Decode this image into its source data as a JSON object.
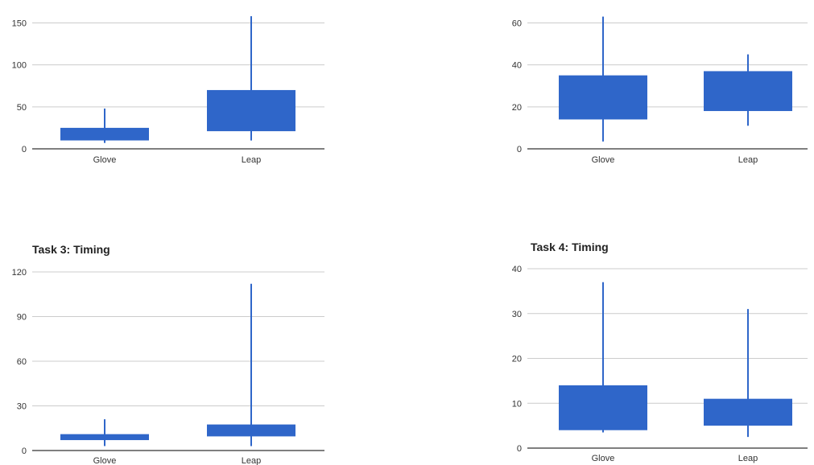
{
  "colors": {
    "box": "#2f66c9",
    "grid": "#cccccc",
    "axis": "#333333"
  },
  "chart_data": [
    {
      "type": "candlestick-box",
      "title": "",
      "categories": [
        "Glove",
        "Leap"
      ],
      "ylim": [
        0,
        160
      ],
      "yticks": [
        0,
        50,
        100,
        150
      ],
      "boxes": [
        {
          "category": "Glove",
          "min": 7,
          "q1": 10,
          "q3": 25,
          "max": 48
        },
        {
          "category": "Leap",
          "min": 10,
          "q1": 21,
          "q3": 70,
          "max": 158
        }
      ],
      "grid": true
    },
    {
      "type": "candlestick-box",
      "title": "",
      "categories": [
        "Glove",
        "Leap"
      ],
      "ylim": [
        0,
        64
      ],
      "yticks": [
        0,
        20,
        40,
        60
      ],
      "boxes": [
        {
          "category": "Glove",
          "min": 3.5,
          "q1": 14,
          "q3": 35,
          "max": 63
        },
        {
          "category": "Leap",
          "min": 11,
          "q1": 18,
          "q3": 37,
          "max": 45
        }
      ],
      "grid": true
    },
    {
      "type": "candlestick-box",
      "title": "Task 3: Timing",
      "categories": [
        "Glove",
        "Leap"
      ],
      "ylim": [
        0,
        120
      ],
      "yticks": [
        0,
        30,
        60,
        90,
        120
      ],
      "boxes": [
        {
          "category": "Glove",
          "min": 3,
          "q1": 7,
          "q3": 11,
          "max": 21
        },
        {
          "category": "Leap",
          "min": 3,
          "q1": 9.5,
          "q3": 17.5,
          "max": 112
        }
      ],
      "grid": true
    },
    {
      "type": "candlestick-box",
      "title": "Task 4: Timing",
      "categories": [
        "Glove",
        "Leap"
      ],
      "ylim": [
        0,
        40
      ],
      "yticks": [
        0,
        10,
        20,
        30,
        40
      ],
      "boxes": [
        {
          "category": "Glove",
          "min": 3.5,
          "q1": 4,
          "q3": 14,
          "max": 37
        },
        {
          "category": "Leap",
          "min": 2.5,
          "q1": 5,
          "q3": 11,
          "max": 31
        }
      ],
      "grid": true
    }
  ]
}
